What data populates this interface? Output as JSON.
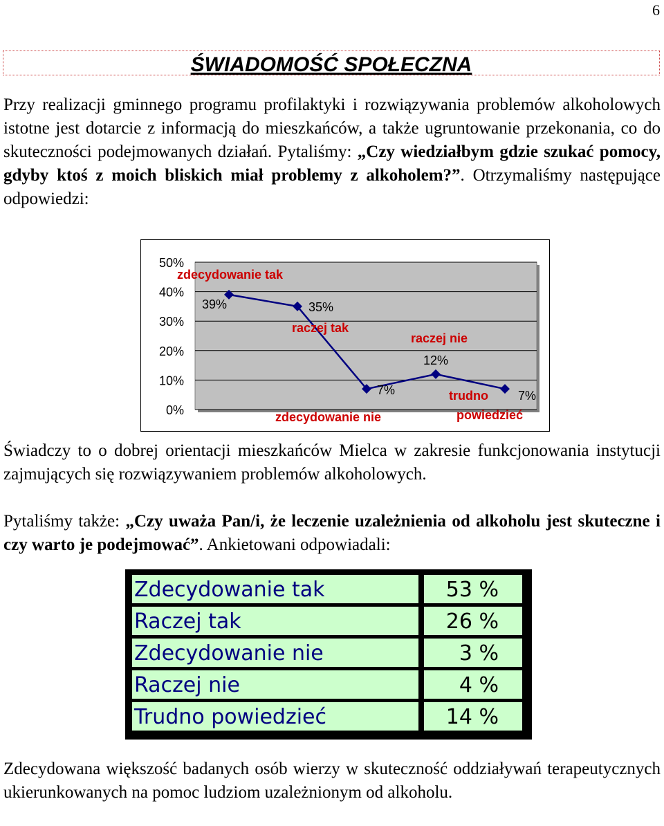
{
  "page_number": "6",
  "title": "ŚWIADOMOŚĆ SPOŁECZNA",
  "intro": {
    "text_before": "Przy realizacji gminnego programu profilaktyki i rozwiązywania problemów alkoholowych istotne jest dotarcie z informacją do mieszkańców, a także ugruntowanie przekonania, co do skuteczności podejmowanych działań. Pytaliśmy: ",
    "question": "„Czy wiedziałbym gdzie szukać pomocy, gdyby ktoś z moich bliskich miał problemy z alkoholem?”",
    "text_after": ". Otrzymaliśmy następujące odpowiedzi:"
  },
  "chart_data": {
    "type": "line",
    "categories": [
      "zdecydowanie tak",
      "raczej tak",
      "zdecydowanie nie",
      "raczej nie",
      "trudno powiedzieć"
    ],
    "values": [
      39,
      35,
      7,
      12,
      7
    ],
    "value_labels": [
      "39%",
      "35%",
      "7%",
      "12%",
      "7%"
    ],
    "y_ticks": [
      "50%",
      "40%",
      "30%",
      "20%",
      "10%",
      "0%"
    ],
    "ylim": [
      0,
      50
    ],
    "grid": true,
    "line_color": "#000080",
    "plot_background": "#c0c0c0"
  },
  "result1": "Świadczy to o dobrej orientacji mieszkańców Mielca w zakresie funkcjonowania instytucji zajmujących się rozwiązywaniem problemów alkoholowych.",
  "question2": {
    "text_before": "Pytaliśmy także: ",
    "question": "„Czy uważa Pan/i, że leczenie uzależnienia od alkoholu jest skuteczne i czy warto je podejmować”",
    "text_after": ". Ankietowani odpowiadali:"
  },
  "table": {
    "rows": [
      {
        "label": "Zdecydowanie tak",
        "value": "53 %"
      },
      {
        "label": "Raczej tak",
        "value": "26 %"
      },
      {
        "label": "Zdecydowanie nie",
        "value": "3 %"
      },
      {
        "label": "Raczej nie",
        "value": "4 %"
      },
      {
        "label": "Trudno powiedzieć",
        "value": "14 %"
      }
    ],
    "label_color": "#000080",
    "cell_background": "#ccffcc"
  },
  "conclusion": "Zdecydowana większość badanych osób wierzy w skuteczność oddziaływań terapeutycznych ukierunkowanych na pomoc ludziom uzależnionym od alkoholu."
}
